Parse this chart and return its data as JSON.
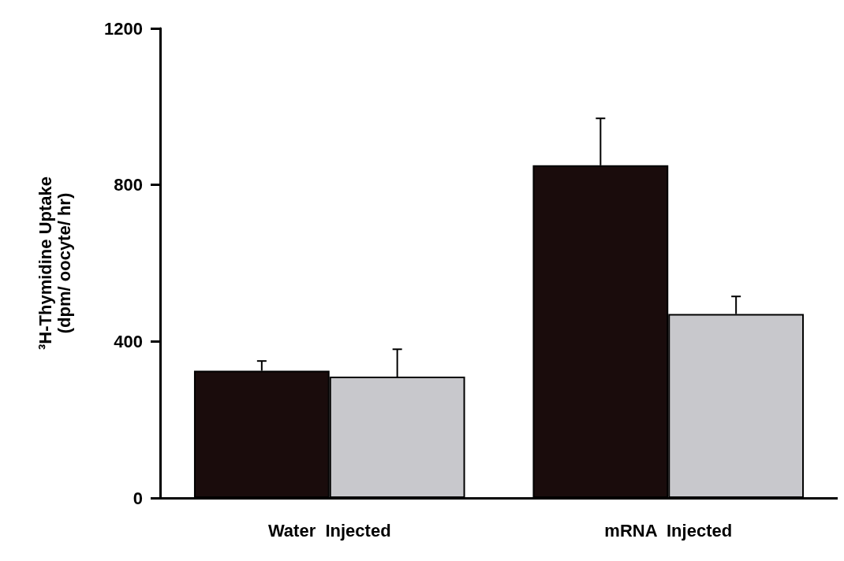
{
  "chart_data": {
    "type": "bar",
    "ylabel": "³H-Thymidine Uptake\n(dpm/ oocyte/ hr)",
    "categories": [
      "Water  Injected",
      "mRNA  Injected"
    ],
    "series": [
      {
        "color": "#1a0c0c",
        "values": [
          325,
          850
        ],
        "errors": [
          [
            325,
            350
          ],
          [
            850,
            970
          ]
        ]
      },
      {
        "color": "#c8c8cc",
        "values": [
          310,
          470
        ],
        "errors": [
          [
            310,
            380
          ],
          [
            470,
            515
          ]
        ]
      }
    ],
    "ylim": [
      0,
      1200
    ],
    "yticks": [
      0,
      400,
      800,
      1200
    ],
    "grid": false
  }
}
